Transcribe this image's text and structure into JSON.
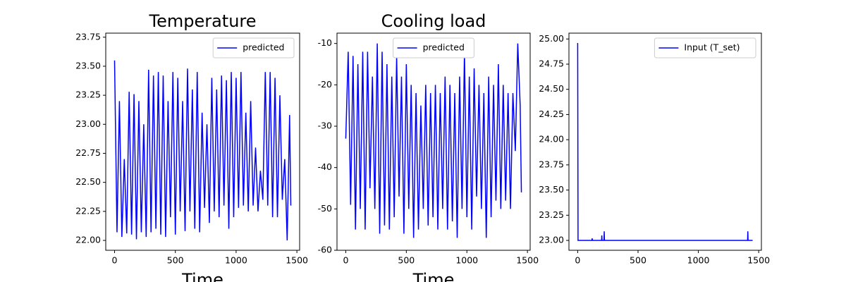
{
  "chart_data": [
    {
      "type": "line",
      "title": "Temperature",
      "xlabel": "Time",
      "x": [
        0,
        20,
        40,
        60,
        80,
        100,
        120,
        140,
        160,
        180,
        200,
        220,
        240,
        260,
        280,
        300,
        320,
        340,
        360,
        380,
        400,
        420,
        440,
        460,
        480,
        500,
        520,
        540,
        560,
        580,
        600,
        620,
        640,
        660,
        680,
        700,
        720,
        740,
        760,
        780,
        800,
        820,
        840,
        860,
        880,
        900,
        920,
        940,
        960,
        980,
        1000,
        1020,
        1040,
        1060,
        1080,
        1100,
        1120,
        1140,
        1160,
        1180,
        1200,
        1220,
        1240,
        1260,
        1280,
        1300,
        1320,
        1340,
        1360,
        1380,
        1400,
        1420,
        1440,
        1450
      ],
      "series": [
        {
          "name": "predicted",
          "color": "#0000ff",
          "values": [
            23.55,
            22.07,
            23.2,
            22.03,
            22.7,
            22.06,
            23.28,
            22.05,
            23.26,
            22.01,
            23.2,
            22.07,
            23.0,
            22.03,
            23.47,
            22.07,
            23.42,
            22.1,
            23.45,
            22.05,
            23.42,
            22.03,
            23.2,
            22.2,
            23.45,
            22.05,
            23.4,
            22.25,
            23.2,
            22.08,
            23.48,
            22.25,
            23.3,
            22.1,
            23.45,
            22.07,
            23.1,
            22.28,
            23.0,
            22.15,
            23.4,
            22.25,
            23.3,
            22.2,
            23.42,
            22.3,
            23.38,
            22.1,
            23.45,
            22.2,
            23.4,
            22.28,
            23.45,
            22.3,
            23.1,
            22.25,
            23.2,
            22.3,
            22.8,
            22.25,
            22.6,
            22.35,
            23.45,
            22.3,
            23.45,
            22.2,
            23.4,
            22.2,
            23.25,
            22.35,
            22.7,
            22.0,
            23.08,
            22.3
          ]
        }
      ],
      "xlim": [
        -72.5,
        1522.5
      ],
      "ylim": [
        21.915,
        23.785
      ],
      "xticks": [
        0,
        500,
        1000,
        1500
      ],
      "yticks": [
        {
          "value": 22.0,
          "label": "22.00"
        },
        {
          "value": 22.25,
          "label": "22.25"
        },
        {
          "value": 22.5,
          "label": "22.50"
        },
        {
          "value": 22.75,
          "label": "22.75"
        },
        {
          "value": 23.0,
          "label": "23.00"
        },
        {
          "value": 23.25,
          "label": "23.25"
        },
        {
          "value": 23.5,
          "label": "23.50"
        },
        {
          "value": 23.75,
          "label": "23.75"
        }
      ],
      "legend": "upper right"
    },
    {
      "type": "line",
      "title": "Cooling load",
      "xlabel": "Time",
      "x": [
        0,
        20,
        40,
        60,
        80,
        100,
        120,
        140,
        160,
        180,
        200,
        220,
        240,
        260,
        280,
        300,
        320,
        340,
        360,
        380,
        400,
        420,
        440,
        460,
        480,
        500,
        520,
        540,
        560,
        580,
        600,
        620,
        640,
        660,
        680,
        700,
        720,
        740,
        760,
        780,
        800,
        820,
        840,
        860,
        880,
        900,
        920,
        940,
        960,
        980,
        1000,
        1020,
        1040,
        1060,
        1080,
        1100,
        1120,
        1140,
        1160,
        1180,
        1200,
        1220,
        1240,
        1260,
        1280,
        1300,
        1320,
        1340,
        1360,
        1380,
        1400,
        1420,
        1440,
        1450
      ],
      "series": [
        {
          "name": "predicted",
          "color": "#0000ff",
          "values": [
            -33,
            -12,
            -49,
            -13,
            -55,
            -15,
            -50,
            -12,
            -55,
            -12,
            -45,
            -18,
            -50,
            -10,
            -56,
            -12,
            -54,
            -15,
            -55,
            -18,
            -52,
            -13,
            -47,
            -18,
            -56,
            -15,
            -50,
            -20,
            -57,
            -22,
            -55,
            -25,
            -50,
            -20,
            -54,
            -22,
            -52,
            -20,
            -55,
            -22,
            -50,
            -18,
            -55,
            -20,
            -53,
            -22,
            -57,
            -18,
            -50,
            -12,
            -52,
            -18,
            -55,
            -16,
            -47,
            -20,
            -50,
            -22,
            -57,
            -18,
            -52,
            -20,
            -48,
            -15,
            -50,
            -20,
            -48,
            -22,
            -50,
            -22,
            -36,
            -10,
            -25,
            -46
          ]
        }
      ],
      "xlim": [
        -72.5,
        1522.5
      ],
      "ylim": [
        -60,
        -7.5
      ],
      "xticks": [
        0,
        500,
        1000,
        1500
      ],
      "yticks": [
        -60,
        -50,
        -40,
        -30,
        -20,
        -10
      ],
      "legend": "upper center"
    },
    {
      "type": "line",
      "x": [
        0,
        3,
        5,
        100,
        118,
        120,
        122,
        195,
        198,
        200,
        202,
        215,
        218,
        220,
        222,
        1405,
        1408,
        1410,
        1412,
        1450
      ],
      "series": [
        {
          "name": "Input (T_set)",
          "color": "#0000ff",
          "values": [
            24.96,
            23.0,
            23.0,
            23.0,
            23.0,
            23.02,
            23.0,
            23.0,
            23.0,
            23.05,
            23.0,
            23.0,
            23.0,
            23.09,
            23.0,
            23.0,
            23.0,
            23.09,
            23.0,
            23.0
          ]
        }
      ],
      "xlim": [
        -72.5,
        1522.5
      ],
      "ylim": [
        22.902,
        25.058
      ],
      "xticks": [
        0,
        500,
        1000,
        1500
      ],
      "yticks": [
        {
          "value": 23.0,
          "label": "23.00"
        },
        {
          "value": 23.25,
          "label": "23.25"
        },
        {
          "value": 23.5,
          "label": "23.50"
        },
        {
          "value": 23.75,
          "label": "23.75"
        },
        {
          "value": 24.0,
          "label": "24.00"
        },
        {
          "value": 24.25,
          "label": "24.25"
        },
        {
          "value": 24.5,
          "label": "24.50"
        },
        {
          "value": 24.75,
          "label": "24.75"
        },
        {
          "value": 25.0,
          "label": "25.00"
        }
      ],
      "legend": "upper right"
    }
  ]
}
